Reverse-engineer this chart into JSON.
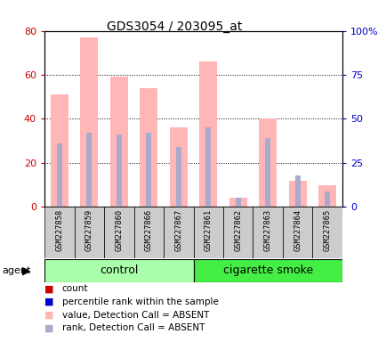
{
  "title": "GDS3054 / 203095_at",
  "samples": [
    "GSM227858",
    "GSM227859",
    "GSM227860",
    "GSM227866",
    "GSM227867",
    "GSM227861",
    "GSM227862",
    "GSM227863",
    "GSM227864",
    "GSM227865"
  ],
  "groups": [
    "control",
    "control",
    "control",
    "control",
    "control",
    "cigarette smoke",
    "cigarette smoke",
    "cigarette smoke",
    "cigarette smoke",
    "cigarette smoke"
  ],
  "pink_values": [
    51,
    77,
    59,
    54,
    36,
    66,
    4,
    40,
    12,
    10
  ],
  "blue_values": [
    36,
    42,
    41,
    42,
    34,
    45,
    5,
    39,
    18,
    9
  ],
  "ylim_left": [
    0,
    80
  ],
  "ylim_right": [
    0,
    100
  ],
  "yticks_left": [
    0,
    20,
    40,
    60,
    80
  ],
  "yticks_right": [
    0,
    25,
    50,
    75,
    100
  ],
  "ytick_labels_right": [
    "0",
    "25",
    "50",
    "75",
    "100%"
  ],
  "ytick_labels_left": [
    "0",
    "20",
    "40",
    "60",
    "80"
  ],
  "pink_color": "#FFB6B6",
  "blue_color": "#AAAACC",
  "count_color": "#CC0000",
  "rank_color": "#0000CC",
  "control_color": "#AAFFAA",
  "smoke_color": "#44EE44",
  "background_color": "#FFFFFF",
  "label_bg_color": "#CCCCCC",
  "legend_items": [
    {
      "color": "#CC0000",
      "label": "count"
    },
    {
      "color": "#0000CC",
      "label": "percentile rank within the sample"
    },
    {
      "color": "#FFB6B6",
      "label": "value, Detection Call = ABSENT"
    },
    {
      "color": "#AAAACC",
      "label": "rank, Detection Call = ABSENT"
    }
  ]
}
